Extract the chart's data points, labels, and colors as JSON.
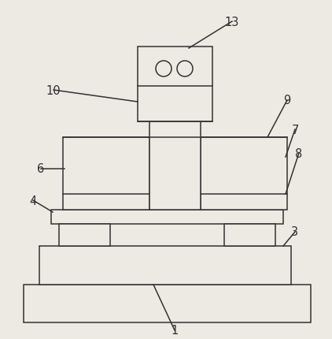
{
  "bg_color": "#ede9e3",
  "line_color": "#333333",
  "line_width": 1.1,
  "fig_width": 4.22,
  "fig_height": 4.31,
  "label_fontsize": 10.5
}
